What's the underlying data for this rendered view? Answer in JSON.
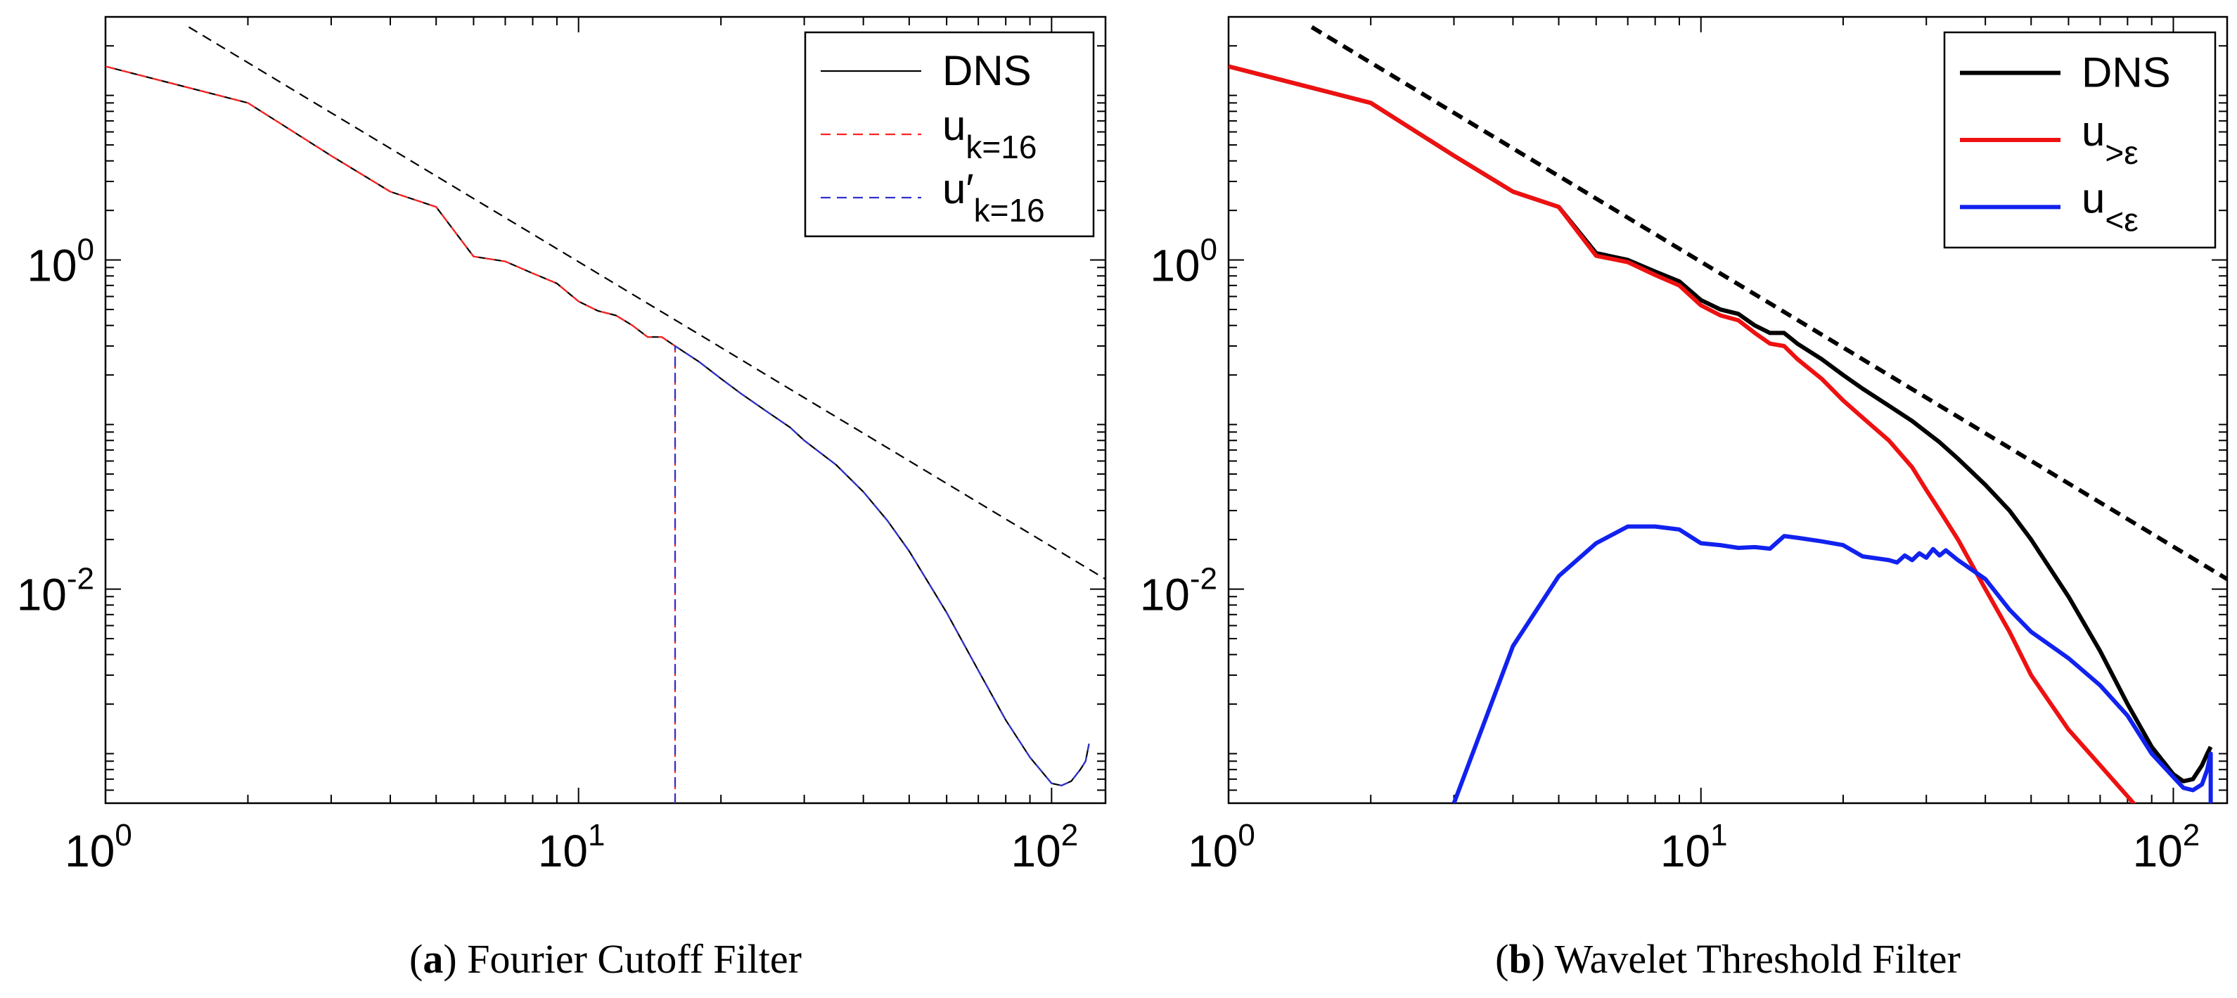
{
  "chart_data": [
    {
      "id": "a",
      "type": "line",
      "xscale": "log",
      "yscale": "log",
      "xlim": [
        1,
        130
      ],
      "ylim": [
        0.0005,
        30
      ],
      "title": "",
      "xlabel": "",
      "ylabel": "",
      "x_ticks": [
        {
          "value": 1,
          "base": "10",
          "exp": "0"
        },
        {
          "value": 10,
          "base": "10",
          "exp": "1"
        },
        {
          "value": 100,
          "base": "10",
          "exp": "2"
        }
      ],
      "y_ticks": [
        {
          "value": 1,
          "base": "10",
          "exp": "0"
        },
        {
          "value": 0.01,
          "base": "10",
          "exp": "-2"
        }
      ],
      "caption": {
        "label": "a",
        "text": "Fourier Cutoff Filter"
      },
      "legend": {
        "position": "top-right",
        "entries": [
          {
            "series": "dns",
            "main": "DNS",
            "sub": ""
          },
          {
            "series": "u_k16",
            "main": "u",
            "sub": "k=16"
          },
          {
            "series": "uprime_k16",
            "main": "u′",
            "sub": "k=16"
          }
        ]
      },
      "series": [
        {
          "name": "DNS",
          "key": "dns",
          "color": "#000000",
          "dash": "",
          "weight": "thin",
          "x": [
            1,
            2,
            3,
            4,
            5,
            6,
            7,
            8,
            9,
            10,
            11,
            12,
            13,
            14,
            15,
            16,
            18,
            20,
            22,
            25,
            28,
            30,
            35,
            40,
            45,
            50,
            60,
            70,
            80,
            90,
            100,
            105,
            110,
            115,
            118,
            120
          ],
          "y": [
            15,
            9,
            4.3,
            2.6,
            2.1,
            1.05,
            0.98,
            0.83,
            0.72,
            0.56,
            0.49,
            0.46,
            0.4,
            0.34,
            0.34,
            0.3,
            0.24,
            0.19,
            0.155,
            0.12,
            0.096,
            0.08,
            0.057,
            0.039,
            0.026,
            0.017,
            0.0072,
            0.0032,
            0.0016,
            0.00095,
            0.00066,
            0.00064,
            0.00068,
            0.0008,
            0.0009,
            0.00115
          ]
        },
        {
          "name": "u k=16",
          "key": "u_k16",
          "color": "#ff2222",
          "dash": "14,9",
          "weight": "thin",
          "x": [
            1,
            2,
            3,
            4,
            5,
            6,
            7,
            8,
            9,
            10,
            11,
            12,
            13,
            14,
            15,
            16,
            16
          ],
          "y": [
            15,
            9,
            4.3,
            2.6,
            2.1,
            1.05,
            0.98,
            0.83,
            0.72,
            0.56,
            0.49,
            0.46,
            0.4,
            0.34,
            0.34,
            0.3,
            0.0005
          ]
        },
        {
          "name": "u' k=16",
          "key": "uprime_k16",
          "color": "#3030cc",
          "dash": "14,9",
          "weight": "thin",
          "x": [
            16,
            16,
            18,
            20,
            22,
            25,
            28,
            30,
            35,
            40,
            45,
            50,
            60,
            70,
            80,
            90,
            100,
            105,
            110,
            115,
            118,
            120
          ],
          "y": [
            0.0005,
            0.3,
            0.24,
            0.19,
            0.155,
            0.12,
            0.096,
            0.08,
            0.057,
            0.039,
            0.026,
            0.017,
            0.0072,
            0.0032,
            0.0016,
            0.00095,
            0.00066,
            0.00064,
            0.00068,
            0.0008,
            0.0009,
            0.00115
          ]
        },
        {
          "name": "reference slope",
          "key": "ref",
          "color": "#000000",
          "dash": "14,9",
          "weight": "thin",
          "x": [
            1.5,
            130
          ],
          "y": [
            26,
            0.0115
          ]
        }
      ]
    },
    {
      "id": "b",
      "type": "line",
      "xscale": "log",
      "yscale": "log",
      "xlim": [
        1,
        130
      ],
      "ylim": [
        0.0005,
        30
      ],
      "title": "",
      "xlabel": "",
      "ylabel": "",
      "x_ticks": [
        {
          "value": 1,
          "base": "10",
          "exp": "0"
        },
        {
          "value": 10,
          "base": "10",
          "exp": "1"
        },
        {
          "value": 100,
          "base": "10",
          "exp": "2"
        }
      ],
      "y_ticks": [
        {
          "value": 1,
          "base": "10",
          "exp": "0"
        },
        {
          "value": 0.01,
          "base": "10",
          "exp": "-2"
        }
      ],
      "caption": {
        "label": "b",
        "text": "Wavelet Threshold Filter"
      },
      "legend": {
        "position": "top-right",
        "entries": [
          {
            "series": "dns",
            "main": "DNS",
            "sub": ""
          },
          {
            "series": "u_gt",
            "main": "u",
            "sub": ">ε"
          },
          {
            "series": "u_lt",
            "main": "u",
            "sub": "<ε"
          }
        ]
      },
      "series": [
        {
          "name": "DNS",
          "key": "dns",
          "color": "#000000",
          "dash": "",
          "weight": "thick",
          "x": [
            1,
            2,
            3,
            4,
            5,
            6,
            7,
            8,
            9,
            10,
            11,
            12,
            13,
            14,
            15,
            16,
            18,
            20,
            22,
            25,
            28,
            30,
            32,
            35,
            40,
            45,
            50,
            60,
            70,
            80,
            90,
            100,
            105,
            110,
            115,
            118,
            120
          ],
          "y": [
            15,
            9,
            4.3,
            2.6,
            2.1,
            1.1,
            1.0,
            0.85,
            0.74,
            0.57,
            0.5,
            0.47,
            0.4,
            0.36,
            0.36,
            0.31,
            0.25,
            0.2,
            0.165,
            0.13,
            0.105,
            0.09,
            0.078,
            0.062,
            0.043,
            0.03,
            0.02,
            0.009,
            0.0042,
            0.002,
            0.0011,
            0.00075,
            0.00068,
            0.0007,
            0.00085,
            0.001,
            0.0011
          ]
        },
        {
          "name": "u >ε",
          "key": "u_gt",
          "color": "#ee1111",
          "dash": "",
          "weight": "thick",
          "x": [
            1,
            2,
            3,
            4,
            5,
            6,
            7,
            8,
            9,
            10,
            11,
            12,
            13,
            14,
            15,
            16,
            18,
            20,
            22,
            25,
            28,
            30,
            32,
            35,
            40,
            45,
            50,
            60,
            70,
            80,
            85
          ],
          "y": [
            15,
            9,
            4.3,
            2.6,
            2.1,
            1.06,
            0.97,
            0.81,
            0.7,
            0.53,
            0.46,
            0.43,
            0.36,
            0.31,
            0.3,
            0.25,
            0.19,
            0.14,
            0.11,
            0.08,
            0.055,
            0.04,
            0.03,
            0.02,
            0.01,
            0.0055,
            0.003,
            0.0014,
            0.00085,
            0.00055,
            0.00045
          ]
        },
        {
          "name": "u <ε",
          "key": "u_lt",
          "color": "#1122ee",
          "dash": "",
          "weight": "thick",
          "x": [
            3,
            4,
            5,
            6,
            7,
            8,
            9,
            10,
            11,
            12,
            13,
            14,
            15,
            16,
            18,
            20,
            22,
            25,
            26,
            27,
            28,
            29,
            30,
            31,
            32,
            33,
            35,
            40,
            45,
            50,
            60,
            70,
            80,
            90,
            100,
            105,
            110,
            115,
            118,
            120,
            120
          ],
          "y": [
            0.0005,
            0.0045,
            0.012,
            0.019,
            0.024,
            0.024,
            0.023,
            0.019,
            0.0185,
            0.0178,
            0.018,
            0.0176,
            0.021,
            0.0205,
            0.0195,
            0.0185,
            0.0158,
            0.015,
            0.0145,
            0.016,
            0.015,
            0.0165,
            0.0155,
            0.0175,
            0.016,
            0.0172,
            0.015,
            0.0115,
            0.0075,
            0.0055,
            0.0038,
            0.0026,
            0.0017,
            0.001,
            0.00072,
            0.00062,
            0.0006,
            0.00065,
            0.0008,
            0.001,
            0.0005
          ]
        },
        {
          "name": "reference slope",
          "key": "ref",
          "color": "#000000",
          "dash": "14,9",
          "weight": "thick",
          "x": [
            1.5,
            130
          ],
          "y": [
            26,
            0.0115
          ]
        }
      ]
    }
  ]
}
